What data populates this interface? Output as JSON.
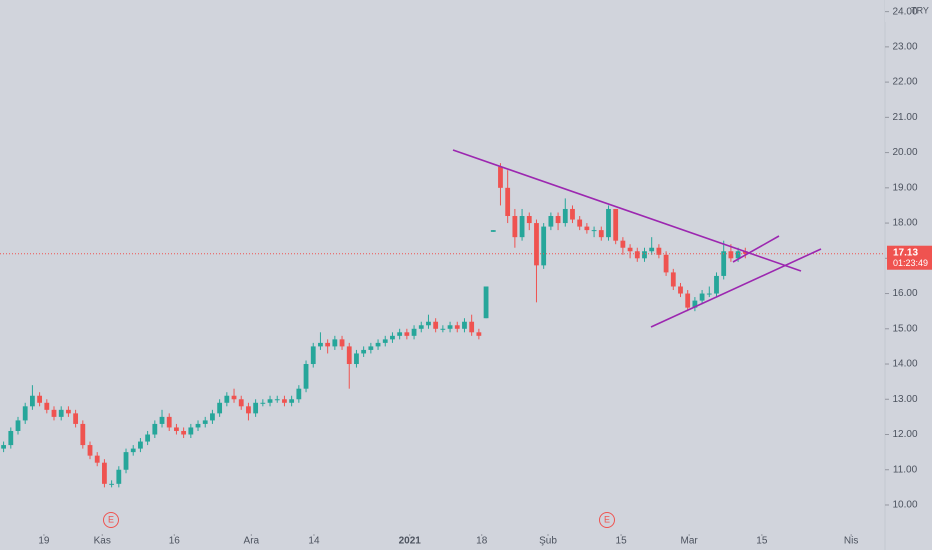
{
  "chart_data": {
    "type": "candlestick",
    "currency": "TRY",
    "countdown": "01:23:49",
    "events": [
      "E",
      "E"
    ],
    "up_color": "#26a69a",
    "down_color": "#ef5350",
    "open": [
      11.6,
      11.7,
      12.1,
      12.4,
      12.8,
      13.1,
      12.9,
      12.7,
      12.5,
      12.7,
      12.6,
      12.3,
      11.7,
      11.4,
      11.2,
      10.6,
      10.6,
      11.0,
      11.5,
      11.6,
      11.8,
      12.0,
      12.3,
      12.5,
      12.2,
      12.1,
      12.0,
      12.2,
      12.3,
      12.4,
      12.6,
      12.9,
      13.1,
      13.0,
      12.8,
      12.6,
      12.9,
      12.9,
      13.0,
      13.0,
      12.9,
      13.0,
      13.3,
      14.0,
      14.5,
      14.6,
      14.5,
      14.7,
      14.5,
      14.0,
      14.3,
      14.4,
      14.5,
      14.6,
      14.7,
      14.8,
      14.9,
      14.8,
      15.0,
      15.1,
      15.2,
      15.0,
      15.0,
      15.1,
      15.0,
      15.2,
      14.9,
      15.3,
      17.75,
      19.6,
      19.0,
      18.2,
      17.6,
      18.2,
      18.0,
      16.8,
      17.9,
      18.2,
      18.0,
      18.4,
      18.1,
      17.9,
      17.8,
      17.8,
      17.6,
      18.4,
      17.5,
      17.3,
      17.2,
      17.0,
      17.2,
      17.3,
      17.1,
      16.6,
      16.2,
      16.0,
      15.6,
      15.8,
      16.0,
      16.0,
      16.5,
      17.2,
      17.0,
      17.2
    ],
    "high": [
      11.8,
      12.2,
      12.5,
      12.9,
      13.4,
      13.2,
      13.0,
      12.8,
      12.8,
      12.8,
      12.7,
      12.4,
      11.8,
      11.5,
      11.3,
      10.7,
      11.1,
      11.6,
      11.7,
      11.9,
      12.1,
      12.4,
      12.7,
      12.6,
      12.3,
      12.2,
      12.3,
      12.4,
      12.5,
      12.7,
      13.0,
      13.2,
      13.3,
      13.1,
      12.9,
      13.0,
      13.0,
      13.1,
      13.1,
      13.1,
      13.1,
      13.4,
      14.1,
      14.6,
      14.9,
      14.7,
      14.8,
      14.8,
      14.6,
      14.4,
      14.5,
      14.6,
      14.7,
      14.8,
      14.9,
      15.0,
      15.0,
      15.1,
      15.2,
      15.4,
      15.3,
      15.1,
      15.2,
      15.2,
      15.3,
      15.4,
      15.0,
      16.2,
      17.8,
      19.7,
      19.5,
      18.4,
      18.4,
      18.3,
      18.1,
      18.0,
      18.3,
      18.3,
      18.7,
      18.5,
      18.2,
      18.0,
      17.9,
      17.9,
      18.5,
      18.4,
      17.6,
      17.4,
      17.3,
      17.3,
      17.6,
      17.4,
      17.2,
      16.7,
      16.3,
      16.1,
      15.9,
      16.1,
      16.2,
      16.6,
      17.5,
      17.4,
      17.3,
      17.3
    ],
    "low": [
      11.5,
      11.6,
      12.0,
      12.3,
      12.7,
      12.8,
      12.6,
      12.4,
      12.4,
      12.5,
      12.2,
      11.6,
      11.3,
      11.1,
      10.5,
      10.5,
      10.5,
      10.9,
      11.4,
      11.5,
      11.7,
      11.9,
      12.2,
      12.1,
      12.0,
      11.9,
      11.9,
      12.1,
      12.2,
      12.3,
      12.5,
      12.8,
      12.9,
      12.7,
      12.4,
      12.5,
      12.8,
      12.8,
      12.9,
      12.8,
      12.8,
      12.9,
      13.2,
      13.9,
      14.4,
      14.3,
      14.4,
      14.4,
      13.3,
      13.9,
      14.2,
      14.3,
      14.4,
      14.5,
      14.6,
      14.7,
      14.7,
      14.7,
      14.9,
      15.0,
      14.9,
      14.9,
      14.9,
      14.9,
      14.9,
      14.8,
      14.7,
      15.3,
      17.75,
      18.5,
      18.0,
      17.3,
      17.5,
      17.8,
      15.75,
      16.7,
      17.8,
      17.8,
      17.9,
      18.0,
      17.8,
      17.7,
      17.6,
      17.5,
      17.5,
      17.4,
      17.1,
      17.0,
      16.9,
      16.9,
      17.1,
      17.0,
      16.5,
      16.1,
      15.9,
      15.5,
      15.5,
      15.7,
      15.9,
      15.9,
      16.4,
      16.9,
      16.9,
      17.0
    ],
    "close": [
      11.7,
      12.1,
      12.4,
      12.8,
      13.1,
      12.9,
      12.7,
      12.5,
      12.7,
      12.6,
      12.3,
      11.7,
      11.4,
      11.2,
      10.6,
      10.6,
      11.0,
      11.5,
      11.6,
      11.8,
      12.0,
      12.3,
      12.5,
      12.2,
      12.1,
      12.0,
      12.2,
      12.3,
      12.4,
      12.6,
      12.9,
      13.1,
      13.0,
      12.8,
      12.6,
      12.9,
      12.9,
      13.0,
      13.0,
      12.9,
      13.0,
      13.3,
      14.0,
      14.5,
      14.6,
      14.5,
      14.7,
      14.5,
      14.0,
      14.3,
      14.4,
      14.5,
      14.6,
      14.7,
      14.8,
      14.9,
      14.8,
      15.0,
      15.1,
      15.2,
      15.0,
      15.0,
      15.1,
      15.0,
      15.2,
      14.9,
      14.8,
      16.2,
      17.8,
      19.0,
      18.2,
      17.6,
      18.2,
      18.0,
      16.8,
      17.9,
      18.2,
      18.0,
      18.4,
      18.1,
      17.9,
      17.8,
      17.8,
      17.6,
      18.4,
      17.5,
      17.3,
      17.2,
      17.0,
      17.2,
      17.3,
      17.1,
      16.6,
      16.2,
      16.0,
      15.6,
      15.8,
      16.0,
      16.0,
      16.5,
      17.2,
      17.0,
      17.2,
      17.13
    ],
    "xlim": [
      -0.5,
      122.4
    ],
    "xticks": [
      {
        "value": 5.6,
        "label": "19"
      },
      {
        "value": 13.7,
        "label": "Kas"
      },
      {
        "value": 23.7,
        "label": "16"
      },
      {
        "value": 34.4,
        "label": "Ara"
      },
      {
        "value": 43.1,
        "label": "14"
      },
      {
        "value": 56.4,
        "label": "2021"
      },
      {
        "value": 66.4,
        "label": "18"
      },
      {
        "value": 75.6,
        "label": "Şub"
      },
      {
        "value": 85.75,
        "label": "15"
      },
      {
        "value": 95.2,
        "label": "Mar"
      },
      {
        "value": 105.3,
        "label": "15"
      },
      {
        "value": 117.7,
        "label": "Nis"
      }
    ],
    "ylim": [
      9.29,
      24.33
    ],
    "yticks": [
      {
        "value": 10,
        "label": "10.00"
      },
      {
        "value": 11,
        "label": "11.00"
      },
      {
        "value": 12,
        "label": "12.00"
      },
      {
        "value": 13,
        "label": "13.00"
      },
      {
        "value": 14,
        "label": "14.00"
      },
      {
        "value": 15,
        "label": "15.00"
      },
      {
        "value": 16,
        "label": "16.00"
      },
      {
        "value": 17,
        "label": "17.00"
      },
      {
        "value": 18,
        "label": "18.00"
      },
      {
        "value": 19,
        "label": "19.00"
      },
      {
        "value": 20,
        "label": "20.00"
      },
      {
        "value": 21,
        "label": "21.00"
      },
      {
        "value": 22,
        "label": "22.00"
      },
      {
        "value": 23,
        "label": "23.00"
      },
      {
        "value": 24,
        "label": "24.00"
      }
    ]
  }
}
